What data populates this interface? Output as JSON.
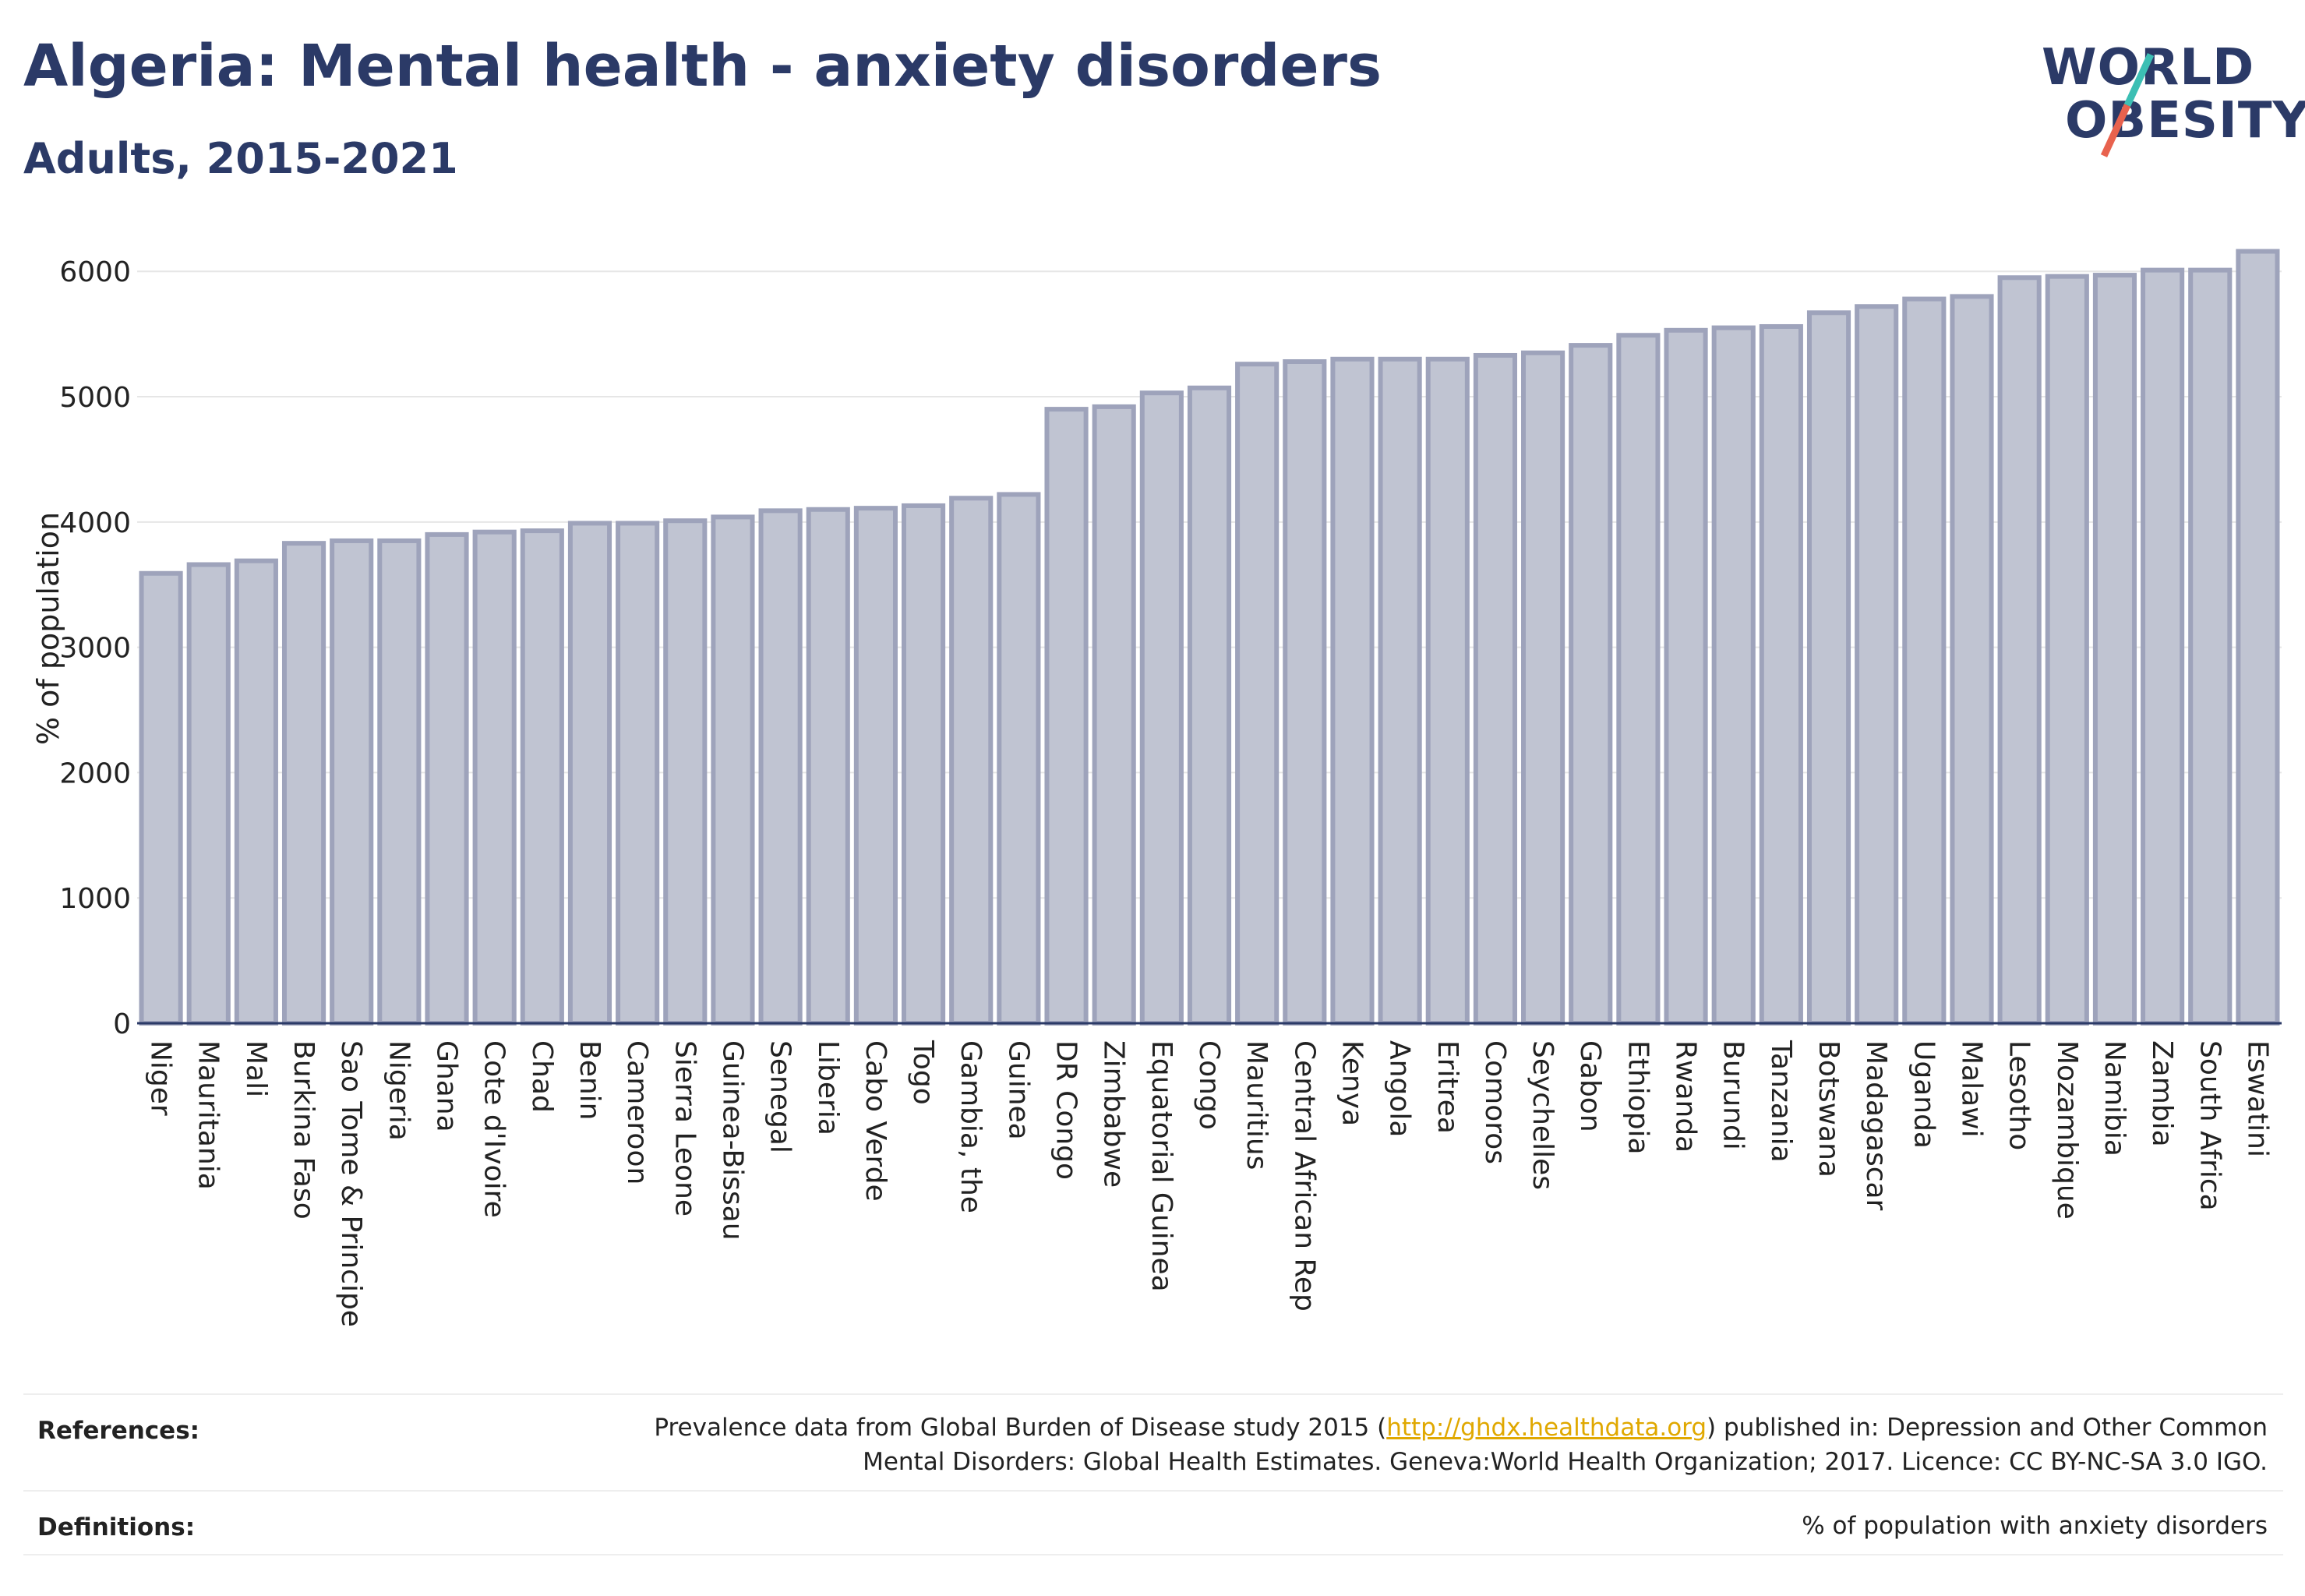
{
  "header": {
    "title": "Algeria: Mental health - anxiety disorders",
    "subtitle": "Adults, 2015-2021"
  },
  "logo": {
    "line1": "WORLD",
    "line2": "OBESITY",
    "accent_teal": "#3cbfb4",
    "accent_red": "#e8624e"
  },
  "colors": {
    "bar_fill": "#c0c4d2",
    "bar_stroke": "#9ea3bb",
    "grid": "#e6e6e6",
    "text_dark": "#2b3a67"
  },
  "chart_data": {
    "type": "bar",
    "ylabel": "% of population",
    "ylim": [
      0,
      6300
    ],
    "yticks": [
      0,
      1000,
      2000,
      3000,
      4000,
      5000,
      6000
    ],
    "grid": true,
    "categories": [
      "Niger",
      "Mauritania",
      "Mali",
      "Burkina Faso",
      "Sao Tome & Principe",
      "Nigeria",
      "Ghana",
      "Cote d'Ivoire",
      "Chad",
      "Benin",
      "Cameroon",
      "Sierra Leone",
      "Guinea-Bissau",
      "Senegal",
      "Liberia",
      "Cabo Verde",
      "Togo",
      "Gambia, the",
      "Guinea",
      "DR Congo",
      "Zimbabwe",
      "Equatorial Guinea",
      "Congo",
      "Mauritius",
      "Central African Rep",
      "Kenya",
      "Angola",
      "Eritrea",
      "Comoros",
      "Seychelles",
      "Gabon",
      "Ethiopia",
      "Rwanda",
      "Burundi",
      "Tanzania",
      "Botswana",
      "Madagascar",
      "Uganda",
      "Malawi",
      "Lesotho",
      "Mozambique",
      "Namibia",
      "Zambia",
      "South Africa",
      "Eswatini"
    ],
    "values": [
      3590,
      3660,
      3690,
      3830,
      3850,
      3850,
      3900,
      3920,
      3930,
      3990,
      3990,
      4010,
      4040,
      4090,
      4100,
      4110,
      4130,
      4190,
      4220,
      4900,
      4920,
      5030,
      5070,
      5260,
      5280,
      5300,
      5300,
      5300,
      5330,
      5350,
      5410,
      5490,
      5530,
      5550,
      5560,
      5670,
      5720,
      5780,
      5800,
      5950,
      5960,
      5970,
      6010,
      6010,
      6160
    ]
  },
  "footer": {
    "references_label": "References:",
    "references_text_1a": "Prevalence data from Global Burden of Disease study 2015 (",
    "references_link": "http://ghdx.healthdata.org",
    "references_text_1b": ") published in: Depression and Other Common",
    "references_text_2": "Mental Disorders: Global Health Estimates. Geneva:World Health Organization; 2017. Licence: CC BY-NC-SA 3.0 IGO.",
    "definitions_label": "Definitions:",
    "definitions_text": "% of population with anxiety disorders"
  }
}
